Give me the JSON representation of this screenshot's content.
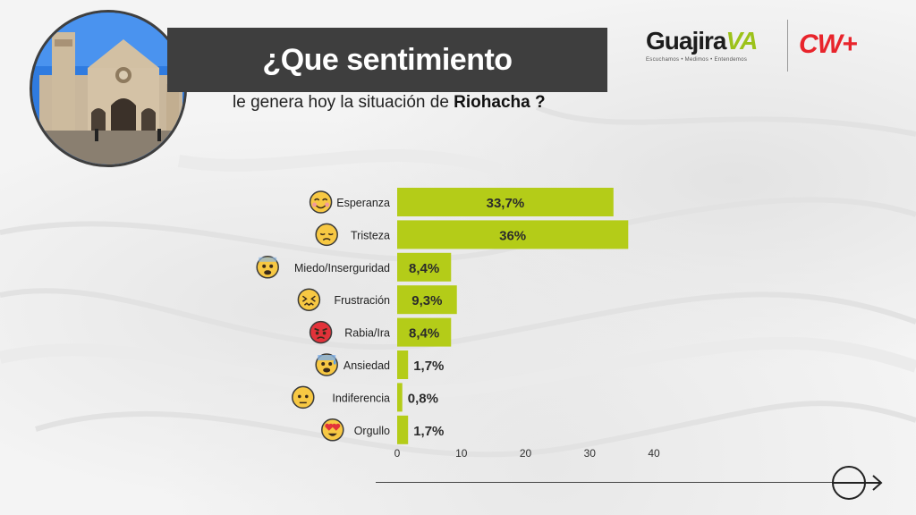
{
  "header": {
    "title": "¿Que sentimiento",
    "subtitle_prefix": "le genera hoy la situación de ",
    "subtitle_emphasis": "Riohacha ?"
  },
  "logos": {
    "guajira_word": "Guajira",
    "guajira_va": "VA",
    "guajira_tagline": "Escuchamos • Medimos • Entendemos",
    "cw": "CW+"
  },
  "colors": {
    "bar": "#b4cc18",
    "title_band": "#3e3e3e",
    "cw_red": "#e8242b",
    "guajira_green": "#9cc21a"
  },
  "chart_data": {
    "type": "bar",
    "orientation": "horizontal",
    "categories": [
      "Esperanza",
      "Tristeza",
      "Miedo/Inserguridad",
      "Frustración",
      "Rabia/Ira",
      "Ansiedad",
      "Indiferencia",
      "Orgullo"
    ],
    "values": [
      33.7,
      36,
      8.4,
      9.3,
      8.4,
      1.7,
      0.8,
      1.7
    ],
    "value_labels": [
      "33,7%",
      "36%",
      "8,4%",
      "9,3%",
      "8,4%",
      "1,7%",
      "0,8%",
      "1,7%"
    ],
    "emojis": [
      "smiling-face",
      "pensive-face",
      "fearful-face",
      "confounded-face",
      "angry-face",
      "anxious-sweat-face",
      "neutral-face",
      "heart-eyes-face"
    ],
    "xticks": [
      "0",
      "10",
      "20",
      "30",
      "40"
    ],
    "xlim": [
      0,
      40
    ],
    "grid": false,
    "legend": "none"
  }
}
